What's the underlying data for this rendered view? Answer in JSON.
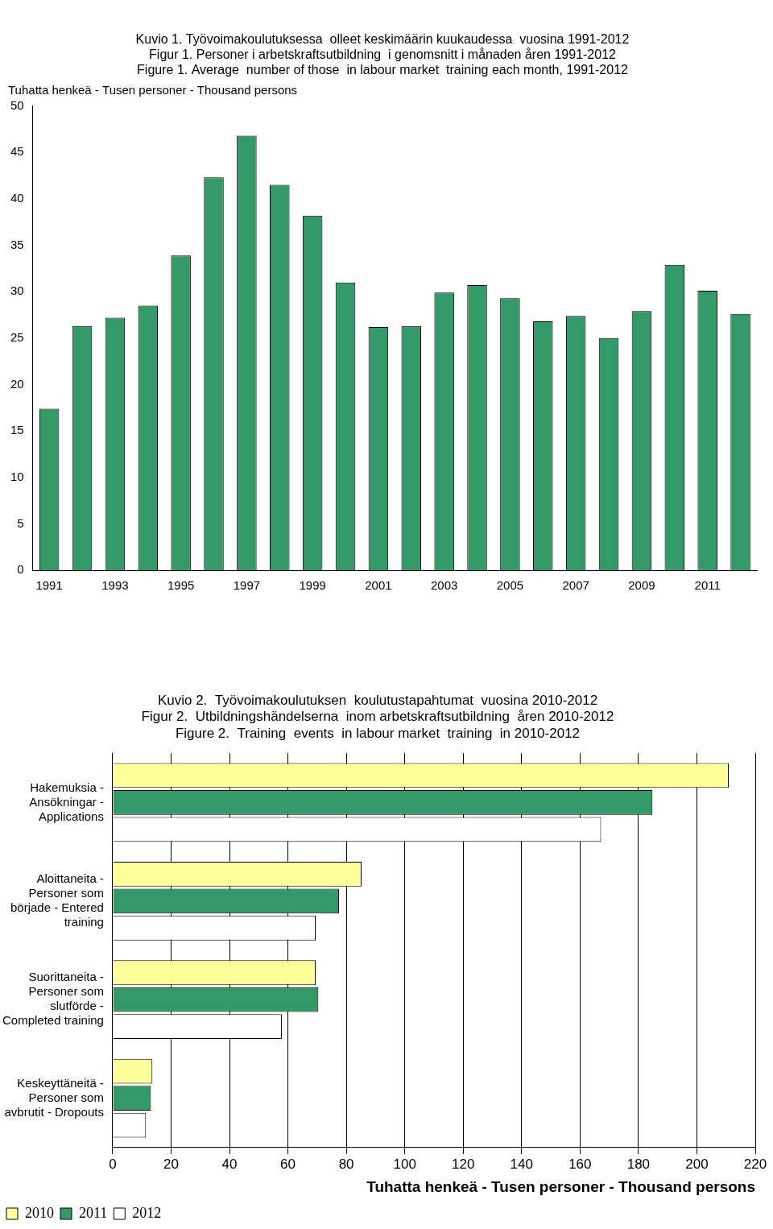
{
  "chart_data": [
    {
      "type": "bar",
      "title": [
        "Kuvio 1. Työvoimakoulutuksessa  olleet keskimäärin kuukaudessa  vuosina 1991-2012",
        "Figur 1. Personer i arbetskraftsutbildning  i genomsnitt i månaden åren 1991-2012",
        "Figure 1. Average  number of those  in labour market  training each month, 1991-2012"
      ],
      "ylabel": "Tuhatta henkeä - Tusen personer - Thousand persons",
      "categories": [
        "1991",
        null,
        "1993",
        null,
        "1995",
        null,
        "1997",
        null,
        "1999",
        null,
        "2001",
        null,
        "2003",
        null,
        "2005",
        null,
        "2007",
        null,
        "2009",
        null,
        "2011",
        null
      ],
      "values": [
        17.4,
        26.3,
        27.2,
        28.5,
        33.9,
        42.3,
        46.8,
        41.5,
        38.2,
        31.0,
        26.2,
        26.3,
        29.9,
        30.7,
        29.3,
        26.8,
        27.4,
        25.0,
        27.9,
        32.9,
        30.1,
        27.6
      ],
      "color": "#339966",
      "ylim": [
        0,
        50
      ],
      "yticks": [
        0,
        5,
        10,
        15,
        20,
        25,
        30,
        35,
        40,
        45,
        50
      ],
      "grid": false
    },
    {
      "type": "bar",
      "orientation": "horizontal",
      "title": [
        "Kuvio 2.  Työvoimakoulutuksen  koulutustapahtumat  vuosina 2010-2012",
        "Figur 2.  Utbildningshändelserna  inom arbetskraftsutbildning  åren 2010-2012",
        "Figure 2.  Training  events  in labour market  training  in 2010-2012"
      ],
      "xlabel": "Tuhatta henkeä - Tusen personer - Thousand persons",
      "categories": [
        "Hakemuksia - Ansökningar - Applications",
        "Aloittaneita - Personer som började - Entered training",
        "Suorittaneita - Personer som slutförde - Completed training",
        "Keskeyttäneitä - Personer som avbrutit - Dropouts"
      ],
      "series": [
        {
          "name": "2010",
          "color": "#ffff99",
          "values": [
            210.9,
            85.2,
            69.5,
            13.6
          ]
        },
        {
          "name": "2011",
          "color": "#339966",
          "values": [
            184.8,
            77.5,
            70.4,
            13.1
          ]
        },
        {
          "name": "2012",
          "color": "#ffffff",
          "values": [
            167.2,
            69.5,
            57.9,
            11.4
          ]
        }
      ],
      "xlim": [
        0,
        220
      ],
      "xticks": [
        0,
        20,
        40,
        60,
        80,
        100,
        120,
        140,
        160,
        180,
        200,
        220
      ],
      "grid": true,
      "legend": "bottom left"
    }
  ]
}
